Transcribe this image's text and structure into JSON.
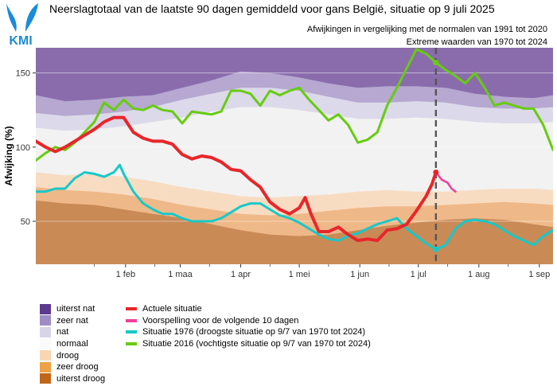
{
  "header": {
    "title": "Neerslagtotaal van de laatste 90 dagen gemiddeld voor gans België, situatie op 9 juli 2025",
    "subtitle1": "Afwijkingen in vergelijking met de normalen van 1991 tot 2020",
    "subtitle2": "Extreme waarden van 1970 tot 2024",
    "logo_text": "KMI"
  },
  "colors": {
    "uiterst_nat": "#8a6cad",
    "zeer_nat": "#b6a8d0",
    "nat": "#dcd9ea",
    "normaal": "#f2f2f2",
    "droog": "#f8dcc2",
    "zeer_droog": "#efb888",
    "uiterst_droog": "#c98a56",
    "actueel": "#e8262a",
    "voorspelling": "#f0409a",
    "s1976": "#18c8c8",
    "s2016": "#66cc11",
    "logo": "#1a8cd8"
  },
  "chart_data": {
    "type": "area",
    "xaxis_labels": [
      "1 feb",
      "1 maa",
      "1 apr",
      "1 mei",
      "1 jun",
      "1 jul",
      "1 aug",
      "1 sep"
    ],
    "xlim": [
      -15,
      250
    ],
    "ylabel": "Afwijking (%)",
    "yticks": [
      50,
      100,
      150
    ],
    "ylim": [
      21,
      167
    ],
    "current_day": 190,
    "categories_legend": [
      "uiterst nat",
      "zeer nat",
      "nat",
      "normaal",
      "droog",
      "zeer droog",
      "uiterst droog"
    ],
    "bands": {
      "x": [
        -15,
        0,
        15,
        30,
        45,
        60,
        75,
        90,
        105,
        120,
        135,
        150,
        165,
        180,
        195,
        210,
        225,
        240,
        250
      ],
      "uiterst_nat_top": [
        167,
        167,
        167,
        167,
        167,
        167,
        167,
        167,
        167,
        167,
        167,
        167,
        167,
        167,
        167,
        167,
        167,
        167,
        167
      ],
      "zeer_nat_top": [
        135,
        131,
        132,
        134,
        135,
        140,
        145,
        151,
        150,
        147,
        143,
        140,
        141,
        141,
        140,
        136,
        134,
        133,
        135
      ],
      "nat_top": [
        123,
        121,
        122,
        124,
        127,
        132,
        136,
        140,
        140,
        138,
        134,
        130,
        130,
        131,
        130,
        127,
        126,
        126,
        127
      ],
      "normaal_top": [
        113,
        111,
        112,
        114,
        117,
        120,
        124,
        127,
        127,
        125,
        122,
        119,
        119,
        120,
        119,
        117,
        116,
        116,
        117
      ],
      "droog_top": [
        83,
        81,
        82,
        80,
        77,
        73,
        70,
        67,
        66,
        67,
        68,
        70,
        71,
        70,
        70,
        71,
        72,
        72,
        71
      ],
      "zeer_droog_top": [
        73,
        71,
        70,
        68,
        65,
        61,
        58,
        55,
        54,
        55,
        57,
        59,
        60,
        60,
        61,
        62,
        63,
        62,
        61
      ],
      "uiterst_droog_top": [
        64,
        62,
        61,
        58,
        55,
        52,
        48,
        44,
        41,
        40,
        41,
        44,
        47,
        49,
        51,
        52,
        51,
        48,
        46
      ]
    },
    "series": [
      {
        "name": "Actuele situatie",
        "key": "actueel",
        "points": [
          [
            -15,
            104
          ],
          [
            -10,
            100
          ],
          [
            -5,
            97
          ],
          [
            0,
            100
          ],
          [
            5,
            104
          ],
          [
            10,
            108
          ],
          [
            15,
            112
          ],
          [
            20,
            117
          ],
          [
            25,
            120
          ],
          [
            30,
            120
          ],
          [
            35,
            110
          ],
          [
            40,
            106
          ],
          [
            45,
            104
          ],
          [
            50,
            104
          ],
          [
            55,
            102
          ],
          [
            60,
            95
          ],
          [
            65,
            92
          ],
          [
            70,
            94
          ],
          [
            75,
            93
          ],
          [
            80,
            90
          ],
          [
            85,
            85
          ],
          [
            90,
            84
          ],
          [
            95,
            78
          ],
          [
            100,
            73
          ],
          [
            105,
            63
          ],
          [
            110,
            58
          ],
          [
            115,
            55
          ],
          [
            120,
            59
          ],
          [
            123,
            66
          ],
          [
            126,
            55
          ],
          [
            130,
            43
          ],
          [
            135,
            43
          ],
          [
            140,
            46
          ],
          [
            145,
            41
          ],
          [
            150,
            37
          ],
          [
            155,
            38
          ],
          [
            160,
            37
          ],
          [
            165,
            44
          ],
          [
            170,
            45
          ],
          [
            175,
            48
          ],
          [
            180,
            57
          ],
          [
            185,
            67
          ],
          [
            188,
            75
          ],
          [
            190,
            83
          ]
        ]
      },
      {
        "name": "Voorspelling voor de volgende 10 dagen",
        "key": "voorspelling",
        "points": [
          [
            190,
            83
          ],
          [
            193,
            78
          ],
          [
            196,
            76
          ],
          [
            198,
            72
          ],
          [
            200,
            70
          ]
        ]
      },
      {
        "name": "Situatie 1976 (droogste situatie op 9/7 van 1970 tot 2024)",
        "key": "s1976",
        "points": [
          [
            -15,
            70
          ],
          [
            -10,
            70
          ],
          [
            -5,
            72
          ],
          [
            0,
            72
          ],
          [
            5,
            79
          ],
          [
            10,
            83
          ],
          [
            15,
            82
          ],
          [
            20,
            80
          ],
          [
            25,
            83
          ],
          [
            28,
            88
          ],
          [
            30,
            82
          ],
          [
            35,
            70
          ],
          [
            40,
            62
          ],
          [
            45,
            58
          ],
          [
            50,
            55
          ],
          [
            55,
            55
          ],
          [
            60,
            52
          ],
          [
            65,
            50
          ],
          [
            70,
            50
          ],
          [
            75,
            50
          ],
          [
            80,
            52
          ],
          [
            85,
            56
          ],
          [
            90,
            60
          ],
          [
            95,
            62
          ],
          [
            100,
            62
          ],
          [
            105,
            58
          ],
          [
            110,
            54
          ],
          [
            115,
            52
          ],
          [
            120,
            49
          ],
          [
            125,
            45
          ],
          [
            130,
            41
          ],
          [
            135,
            38
          ],
          [
            140,
            37
          ],
          [
            145,
            40
          ],
          [
            150,
            42
          ],
          [
            155,
            45
          ],
          [
            160,
            48
          ],
          [
            165,
            50
          ],
          [
            170,
            52
          ],
          [
            175,
            45
          ],
          [
            180,
            40
          ],
          [
            185,
            35
          ],
          [
            190,
            31
          ],
          [
            195,
            34
          ],
          [
            200,
            45
          ],
          [
            205,
            50
          ],
          [
            210,
            51
          ],
          [
            215,
            50
          ],
          [
            220,
            48
          ],
          [
            225,
            44
          ],
          [
            230,
            40
          ],
          [
            235,
            37
          ],
          [
            240,
            34
          ],
          [
            245,
            40
          ],
          [
            250,
            44
          ]
        ]
      },
      {
        "name": "Situatie 2016 (vochtigste situatie op 9/7 van 1970 tot 2024)",
        "key": "s2016",
        "points": [
          [
            -15,
            91
          ],
          [
            -10,
            96
          ],
          [
            -5,
            100
          ],
          [
            0,
            98
          ],
          [
            5,
            103
          ],
          [
            10,
            110
          ],
          [
            15,
            117
          ],
          [
            20,
            130
          ],
          [
            25,
            125
          ],
          [
            30,
            132
          ],
          [
            35,
            126
          ],
          [
            40,
            125
          ],
          [
            45,
            128
          ],
          [
            50,
            125
          ],
          [
            55,
            124
          ],
          [
            60,
            116
          ],
          [
            65,
            124
          ],
          [
            70,
            123
          ],
          [
            75,
            122
          ],
          [
            80,
            124
          ],
          [
            85,
            138
          ],
          [
            90,
            138
          ],
          [
            95,
            136
          ],
          [
            100,
            128
          ],
          [
            105,
            138
          ],
          [
            110,
            135
          ],
          [
            115,
            138
          ],
          [
            120,
            140
          ],
          [
            125,
            132
          ],
          [
            130,
            125
          ],
          [
            135,
            118
          ],
          [
            140,
            122
          ],
          [
            145,
            115
          ],
          [
            150,
            103
          ],
          [
            155,
            105
          ],
          [
            160,
            110
          ],
          [
            165,
            128
          ],
          [
            170,
            140
          ],
          [
            175,
            153
          ],
          [
            180,
            166
          ],
          [
            185,
            163
          ],
          [
            190,
            157
          ],
          [
            195,
            152
          ],
          [
            200,
            148
          ],
          [
            205,
            143
          ],
          [
            210,
            150
          ],
          [
            215,
            140
          ],
          [
            220,
            128
          ],
          [
            225,
            130
          ],
          [
            230,
            128
          ],
          [
            235,
            126
          ],
          [
            240,
            126
          ],
          [
            245,
            115
          ],
          [
            250,
            98
          ]
        ]
      }
    ]
  }
}
